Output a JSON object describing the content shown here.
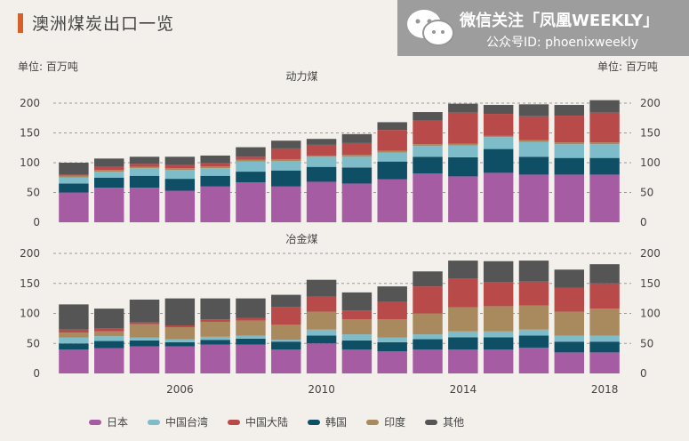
{
  "page_title": "澳洲煤炭出口一览",
  "watermark": {
    "line1": "微信关注「凤凰WEEKLY」",
    "line2": "公众号ID: phoenixweekly"
  },
  "unit_label": "单位: 百万吨",
  "colors": {
    "日本": "#a55ca3",
    "中国台湾": "#7fbcca",
    "中国大陆": "#b84a4a",
    "韩国": "#0f4f66",
    "印度": "#a98a5e",
    "其他": "#555555"
  },
  "legend": [
    "日本",
    "中国台湾",
    "中国大陆",
    "韩国",
    "印度",
    "其他"
  ],
  "chart_data": [
    {
      "type": "bar",
      "stacked": true,
      "title": "动力煤",
      "ylim": [
        0,
        200
      ],
      "yticks": [
        0,
        50,
        100,
        150,
        200
      ],
      "x": [
        2003,
        2004,
        2005,
        2006,
        2007,
        2008,
        2009,
        2010,
        2011,
        2012,
        2013,
        2014,
        2015,
        2016,
        2017,
        2018
      ],
      "series": [
        {
          "name": "日本",
          "values": [
            50,
            58,
            58,
            53,
            60,
            67,
            60,
            68,
            65,
            72,
            82,
            77,
            83,
            80,
            80,
            80
          ]
        },
        {
          "name": "韩国",
          "values": [
            15,
            17,
            20,
            20,
            18,
            18,
            27,
            25,
            27,
            30,
            28,
            32,
            40,
            30,
            28,
            28
          ]
        },
        {
          "name": "中国台湾",
          "values": [
            10,
            10,
            13,
            15,
            13,
            17,
            16,
            17,
            18,
            15,
            18,
            20,
            20,
            25,
            23,
            23
          ]
        },
        {
          "name": "印度",
          "values": [
            3,
            3,
            2,
            3,
            3,
            3,
            3,
            2,
            3,
            3,
            3,
            3,
            2,
            3,
            3,
            3
          ]
        },
        {
          "name": "中国大陆",
          "values": [
            2,
            5,
            5,
            5,
            5,
            5,
            18,
            18,
            20,
            35,
            40,
            52,
            37,
            40,
            45,
            50
          ]
        },
        {
          "name": "其他",
          "values": [
            20,
            14,
            12,
            14,
            13,
            16,
            13,
            10,
            15,
            13,
            14,
            15,
            15,
            20,
            18,
            21
          ]
        }
      ]
    },
    {
      "type": "bar",
      "stacked": true,
      "title": "冶金煤",
      "ylim": [
        0,
        200
      ],
      "yticks": [
        0,
        50,
        100,
        150,
        200
      ],
      "x": [
        2003,
        2004,
        2005,
        2006,
        2007,
        2008,
        2009,
        2010,
        2011,
        2012,
        2013,
        2014,
        2015,
        2016,
        2017,
        2018
      ],
      "xticklabels": [
        "",
        "",
        "",
        "2006",
        "",
        "",
        "",
        "2010",
        "",
        "",
        "",
        "2014",
        "",
        "",
        "",
        "2018"
      ],
      "series": [
        {
          "name": "日本",
          "values": [
            40,
            42,
            45,
            45,
            48,
            48,
            40,
            50,
            40,
            37,
            40,
            40,
            40,
            43,
            35,
            35
          ]
        },
        {
          "name": "韩国",
          "values": [
            10,
            12,
            10,
            7,
            8,
            10,
            13,
            13,
            15,
            15,
            17,
            20,
            20,
            20,
            18,
            18
          ]
        },
        {
          "name": "中国台湾",
          "values": [
            10,
            8,
            5,
            5,
            5,
            5,
            3,
            10,
            10,
            8,
            8,
            10,
            10,
            10,
            10,
            10
          ]
        },
        {
          "name": "印度",
          "values": [
            8,
            8,
            22,
            20,
            25,
            25,
            25,
            30,
            25,
            30,
            35,
            40,
            42,
            40,
            40,
            45
          ]
        },
        {
          "name": "中国大陆",
          "values": [
            5,
            5,
            3,
            3,
            4,
            4,
            30,
            25,
            15,
            30,
            45,
            48,
            40,
            40,
            40,
            42
          ]
        },
        {
          "name": "其他",
          "values": [
            42,
            33,
            38,
            45,
            35,
            33,
            20,
            28,
            30,
            25,
            25,
            30,
            35,
            35,
            30,
            32
          ]
        }
      ]
    }
  ]
}
